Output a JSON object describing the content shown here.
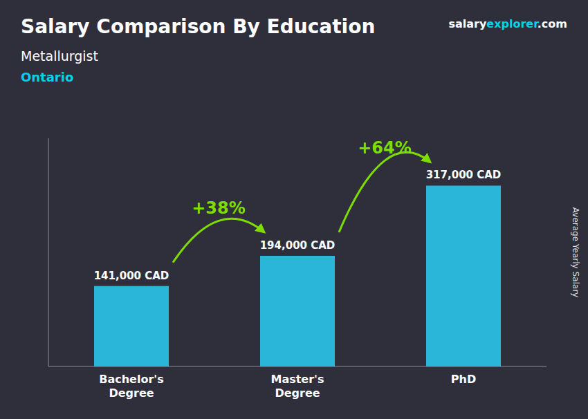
{
  "chart_data": {
    "type": "bar",
    "title": "Salary Comparison By Education",
    "subtitles": [
      "Metallurgist",
      "Ontario"
    ],
    "watermark": [
      "salary",
      "explorer",
      ".com"
    ],
    "ylabel": "Average Yearly Salary",
    "categories": [
      "Bachelor's\nDegree",
      "Master's\nDegree",
      "PhD"
    ],
    "values": [
      141000,
      194000,
      317000
    ],
    "value_labels": [
      "141,000 CAD",
      "194,000 CAD",
      "317,000 CAD"
    ],
    "data_labels": true,
    "annotations": [
      "+38%",
      "+64%"
    ],
    "color": "#29b6d8",
    "ylim": [
      0,
      400000
    ],
    "tick_labels": "x",
    "grid": false
  }
}
